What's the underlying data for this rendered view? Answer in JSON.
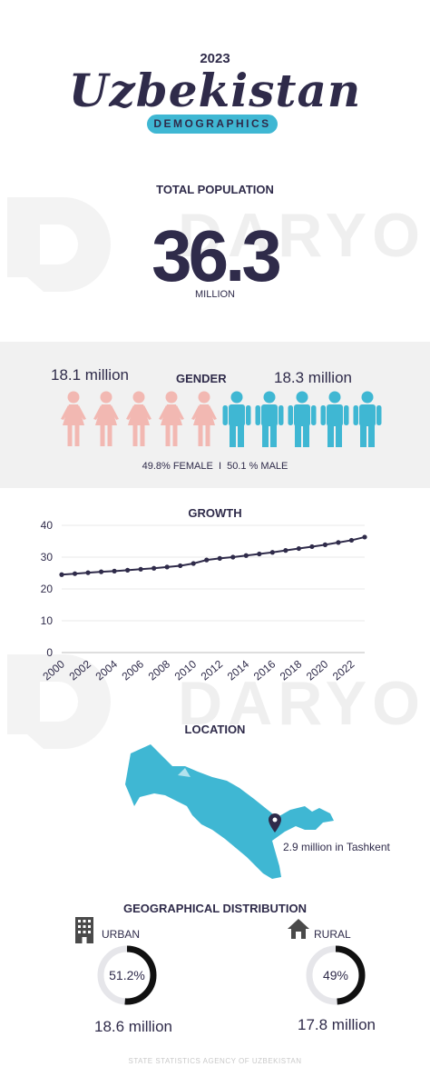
{
  "header": {
    "year": "2023",
    "title": "Uzbekistan",
    "subtitle": "DEMOGRAPHICS"
  },
  "watermark": "DARYO",
  "population": {
    "title": "TOTAL POPULATION",
    "value": "36.3",
    "unit": "MILLION"
  },
  "gender": {
    "title": "GENDER",
    "female_label": "18.1 million",
    "male_label": "18.3 million",
    "ratio_text": "49.8% FEMALE  I  50.1 % MALE",
    "female_color": "#f2b8b2",
    "male_color": "#3fb7d3",
    "female_icon": "female-person-icon",
    "male_icon": "male-person-icon",
    "female_count": 5,
    "male_count": 5
  },
  "chart_data": {
    "type": "line",
    "title": "GROWTH",
    "x": [
      2000,
      2001,
      2002,
      2003,
      2004,
      2005,
      2006,
      2007,
      2008,
      2009,
      2010,
      2011,
      2012,
      2013,
      2014,
      2015,
      2016,
      2017,
      2018,
      2019,
      2020,
      2021,
      2022,
      2023
    ],
    "series": [
      {
        "values": [
          24.5,
          24.8,
          25.1,
          25.4,
          25.6,
          25.9,
          26.2,
          26.5,
          26.9,
          27.3,
          28.0,
          29.1,
          29.6,
          30.0,
          30.5,
          31.0,
          31.5,
          32.1,
          32.7,
          33.3,
          33.9,
          34.6,
          35.3,
          36.3
        ]
      }
    ],
    "xticks": [
      "2000",
      "2002",
      "2004",
      "2006",
      "2008",
      "2010",
      "2012",
      "2014",
      "2016",
      "2018",
      "2020",
      "2022"
    ],
    "yticks": [
      "0",
      "10",
      "20",
      "30",
      "40"
    ],
    "ylim": [
      0,
      40
    ],
    "grid": true,
    "line_color": "#2f2b4a"
  },
  "location": {
    "title": "LOCATION",
    "annotation": "2.9 million in Tashkent",
    "map_color": "#3fb7d3",
    "pin_icon": "location-pin-icon"
  },
  "distribution": {
    "title": "GEOGRAPHICAL DISTRIBUTION",
    "urban": {
      "label": "URBAN",
      "percent_text": "51.2%",
      "fraction": 0.512,
      "amount": "18.6 million",
      "icon": "building-icon"
    },
    "rural": {
      "label": "RURAL",
      "percent_text": "49%",
      "fraction": 0.49,
      "amount": "17.8 million",
      "icon": "house-icon"
    }
  },
  "footer": "STATE STATISTICS AGENCY OF UZBEKISTAN"
}
